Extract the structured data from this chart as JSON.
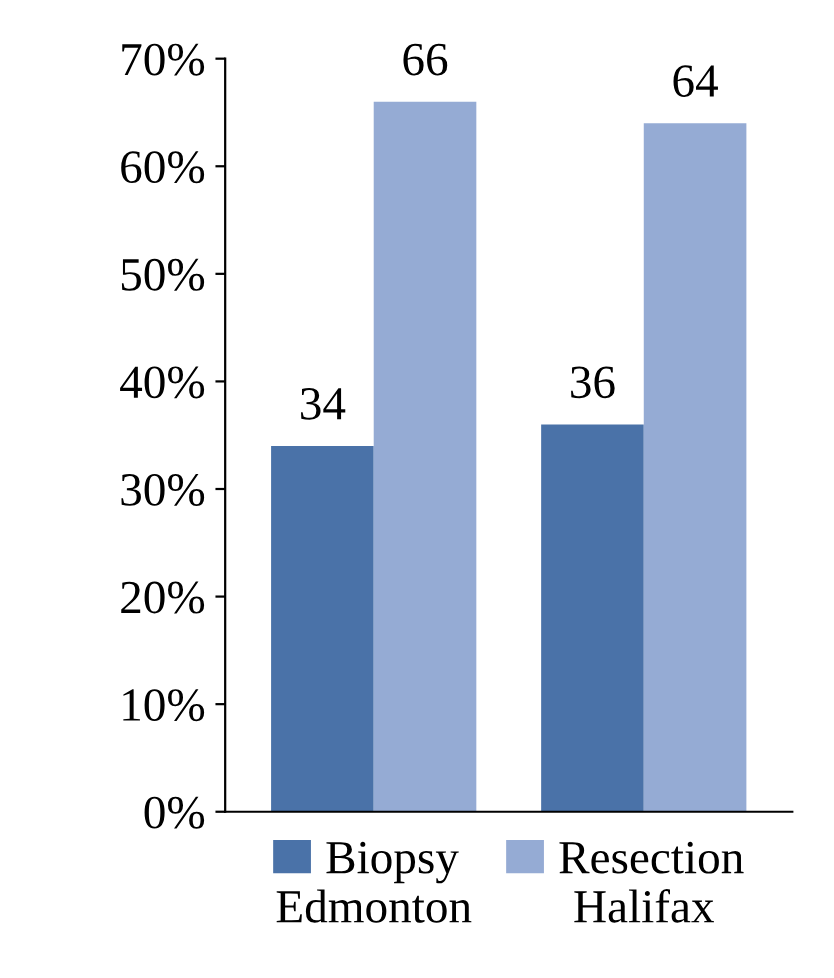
{
  "chart_data": {
    "type": "bar",
    "categories": [
      "Edmonton",
      "Halifax"
    ],
    "series": [
      {
        "name": "Biopsy",
        "color": "#4a72a8",
        "values": [
          34,
          36
        ]
      },
      {
        "name": "Resection",
        "color": "#95abd4",
        "values": [
          66,
          64
        ]
      }
    ],
    "ylim": [
      0,
      70
    ],
    "yticks": [
      {
        "value": 0,
        "label": "0%"
      },
      {
        "value": 10,
        "label": "10%"
      },
      {
        "value": 20,
        "label": "20%"
      },
      {
        "value": 30,
        "label": "30%"
      },
      {
        "value": 40,
        "label": "40%"
      },
      {
        "value": 50,
        "label": "50%"
      },
      {
        "value": 60,
        "label": "60%"
      },
      {
        "value": 70,
        "label": "70%"
      }
    ],
    "data_labels": true,
    "grid": false,
    "legend": "bottom"
  }
}
